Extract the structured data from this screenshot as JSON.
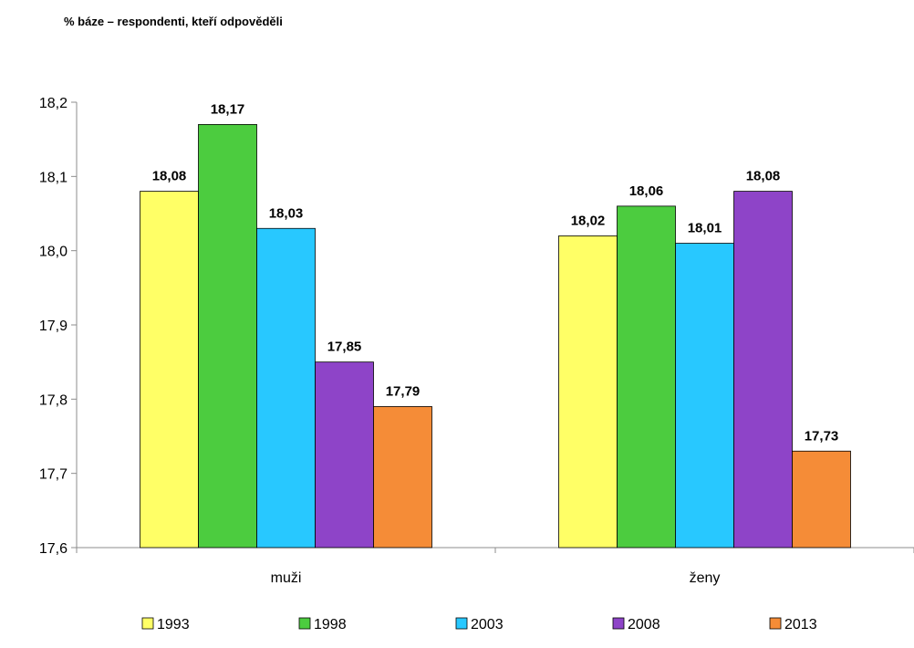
{
  "chart_data": {
    "type": "bar",
    "subtitle": "% báze – respondenti, kteří odpověděli",
    "categories": [
      "muži",
      "ženy"
    ],
    "series": [
      {
        "name": "1993",
        "color": "#ffff66",
        "values": [
          18.08,
          18.02
        ],
        "labels": [
          "18,08",
          "18,02"
        ]
      },
      {
        "name": "1998",
        "color": "#4ccc3f",
        "values": [
          18.17,
          18.06
        ],
        "labels": [
          "18,17",
          "18,06"
        ]
      },
      {
        "name": "2003",
        "color": "#28c8ff",
        "values": [
          18.03,
          18.01
        ],
        "labels": [
          "18,03",
          "18,01"
        ]
      },
      {
        "name": "2008",
        "color": "#8e44c8",
        "values": [
          17.85,
          18.08
        ],
        "labels": [
          "17,85",
          "18,08"
        ]
      },
      {
        "name": "2013",
        "color": "#f58c37",
        "values": [
          17.79,
          17.73
        ],
        "labels": [
          "17,79",
          "17,73"
        ]
      }
    ],
    "ylim": [
      17.6,
      18.2
    ],
    "yticks": [
      17.6,
      17.7,
      17.8,
      17.9,
      18.0,
      18.1,
      18.2
    ],
    "ytick_labels": [
      "17,6",
      "17,7",
      "17,8",
      "17,9",
      "18,0",
      "18,1",
      "18,2"
    ],
    "grid": false,
    "legend_position": "bottom"
  }
}
